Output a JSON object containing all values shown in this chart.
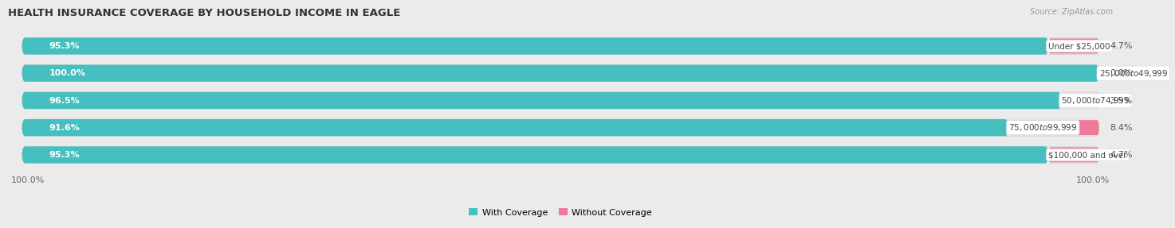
{
  "title": "HEALTH INSURANCE COVERAGE BY HOUSEHOLD INCOME IN EAGLE",
  "source": "Source: ZipAtlas.com",
  "categories": [
    "Under $25,000",
    "$25,000 to $49,999",
    "$50,000 to $74,999",
    "$75,000 to $99,999",
    "$100,000 and over"
  ],
  "with_coverage": [
    95.3,
    100.0,
    96.5,
    91.6,
    95.3
  ],
  "without_coverage": [
    4.7,
    0.0,
    3.5,
    8.4,
    4.7
  ],
  "color_with": "#45BFC0",
  "color_without": "#F07898",
  "bar_height": 0.62,
  "background_color": "#ebebeb",
  "bar_bg_color": "#dcdcdc",
  "legend_with": "With Coverage",
  "legend_without": "Without Coverage",
  "x_tick_label": "100.0%",
  "title_fontsize": 9.5,
  "label_fontsize": 8.0,
  "cat_fontsize": 7.5
}
